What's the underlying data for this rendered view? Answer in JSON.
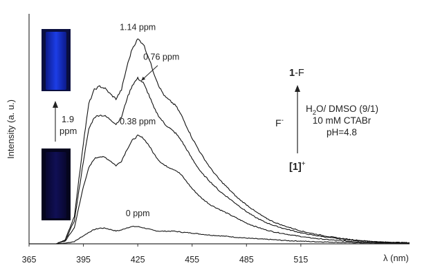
{
  "chart_data": {
    "type": "line",
    "xlabel": "λ (nm)",
    "ylabel": "Intensity (a. u.)",
    "xlim": [
      365,
      575
    ],
    "ylim": [
      0,
      1.0
    ],
    "xticks": [
      365,
      395,
      425,
      455,
      485,
      515
    ],
    "grid": false,
    "series": [
      {
        "name": "0 ppm",
        "x": [
          365,
          380,
          385,
          390,
          395,
          398,
          401,
          404,
          407,
          410,
          413,
          416,
          419,
          422,
          425,
          428,
          431,
          434,
          437,
          440,
          445,
          450,
          455,
          460,
          465,
          470,
          475,
          480,
          485,
          490,
          495,
          500,
          505,
          510,
          515,
          520,
          530,
          540,
          550,
          560,
          575
        ],
        "y": [
          0,
          0,
          0.003,
          0.01,
          0.035,
          0.05,
          0.062,
          0.068,
          0.068,
          0.062,
          0.056,
          0.06,
          0.07,
          0.075,
          0.075,
          0.07,
          0.064,
          0.058,
          0.055,
          0.055,
          0.055,
          0.05,
          0.047,
          0.042,
          0.038,
          0.035,
          0.032,
          0.028,
          0.025,
          0.022,
          0.02,
          0.018,
          0.015,
          0.013,
          0.012,
          0.01,
          0.008,
          0.006,
          0.004,
          0.003,
          0.002
        ]
      },
      {
        "name": "0.38 ppm",
        "x": [
          365,
          380,
          385,
          390,
          395,
          398,
          401,
          404,
          407,
          410,
          413,
          416,
          419,
          422,
          425,
          428,
          431,
          434,
          437,
          440,
          443,
          446,
          449,
          452,
          455,
          460,
          465,
          470,
          475,
          480,
          485,
          490,
          495,
          500,
          505,
          510,
          515,
          520,
          530,
          540,
          550,
          560,
          575
        ],
        "y": [
          0,
          0,
          0.012,
          0.07,
          0.25,
          0.33,
          0.37,
          0.38,
          0.375,
          0.36,
          0.34,
          0.36,
          0.41,
          0.45,
          0.47,
          0.46,
          0.43,
          0.39,
          0.36,
          0.34,
          0.33,
          0.32,
          0.3,
          0.27,
          0.24,
          0.2,
          0.17,
          0.15,
          0.13,
          0.11,
          0.09,
          0.075,
          0.062,
          0.052,
          0.045,
          0.038,
          0.032,
          0.026,
          0.018,
          0.012,
          0.008,
          0.005,
          0.003
        ]
      },
      {
        "name": "0.76 ppm",
        "x": [
          365,
          380,
          385,
          390,
          395,
          398,
          401,
          404,
          407,
          410,
          413,
          416,
          419,
          422,
          425,
          428,
          431,
          434,
          437,
          440,
          443,
          446,
          449,
          452,
          455,
          460,
          465,
          470,
          475,
          480,
          485,
          490,
          495,
          500,
          505,
          510,
          515,
          520,
          530,
          540,
          550,
          560,
          575
        ],
        "y": [
          0,
          0,
          0.015,
          0.1,
          0.36,
          0.5,
          0.55,
          0.56,
          0.555,
          0.54,
          0.52,
          0.55,
          0.63,
          0.69,
          0.72,
          0.7,
          0.65,
          0.59,
          0.55,
          0.52,
          0.5,
          0.48,
          0.45,
          0.41,
          0.37,
          0.31,
          0.27,
          0.23,
          0.2,
          0.17,
          0.14,
          0.115,
          0.095,
          0.08,
          0.068,
          0.058,
          0.048,
          0.04,
          0.028,
          0.018,
          0.012,
          0.007,
          0.004
        ]
      },
      {
        "name": "1.14 ppm",
        "x": [
          365,
          380,
          385,
          390,
          395,
          398,
          401,
          404,
          407,
          410,
          413,
          416,
          419,
          422,
          425,
          428,
          431,
          434,
          437,
          440,
          443,
          446,
          449,
          452,
          455,
          460,
          465,
          470,
          475,
          480,
          485,
          490,
          495,
          500,
          505,
          510,
          515,
          520,
          530,
          540,
          550,
          560,
          575
        ],
        "y": [
          0,
          0,
          0.018,
          0.12,
          0.44,
          0.61,
          0.67,
          0.685,
          0.675,
          0.65,
          0.63,
          0.67,
          0.77,
          0.85,
          0.89,
          0.87,
          0.81,
          0.74,
          0.68,
          0.64,
          0.62,
          0.6,
          0.56,
          0.51,
          0.46,
          0.39,
          0.33,
          0.28,
          0.24,
          0.2,
          0.17,
          0.14,
          0.115,
          0.095,
          0.08,
          0.068,
          0.056,
          0.047,
          0.032,
          0.021,
          0.013,
          0.008,
          0.005
        ]
      }
    ],
    "annotations": [
      {
        "text": "1.14 ppm",
        "x": 425,
        "y": 0.93
      },
      {
        "text": "0.76 ppm",
        "x": 438,
        "y": 0.8
      },
      {
        "text": "0.38 ppm",
        "x": 425,
        "y": 0.52
      },
      {
        "text": "0 ppm",
        "x": 425,
        "y": 0.12
      }
    ],
    "arrow_annotation_target": {
      "x": 427,
      "y": 0.71
    }
  },
  "inset": {
    "vial_top_color": "#1c3de6",
    "vial_bottom_color": "#100f55",
    "arrow_label_line1": "1.9",
    "arrow_label_line2": "ppm"
  },
  "scheme": {
    "product_bold": "1",
    "product_rest": "-F",
    "reactant_bold": "[1]",
    "reactant_sup": "+",
    "reagent": "F",
    "reagent_sup": "-",
    "cond_solvent_a": "H",
    "cond_solvent_sub": "2",
    "cond_solvent_b": "O/ DMSO (9/1)",
    "cond_line2": "10 mM CTABr",
    "cond_line3": "pH=4.8"
  }
}
